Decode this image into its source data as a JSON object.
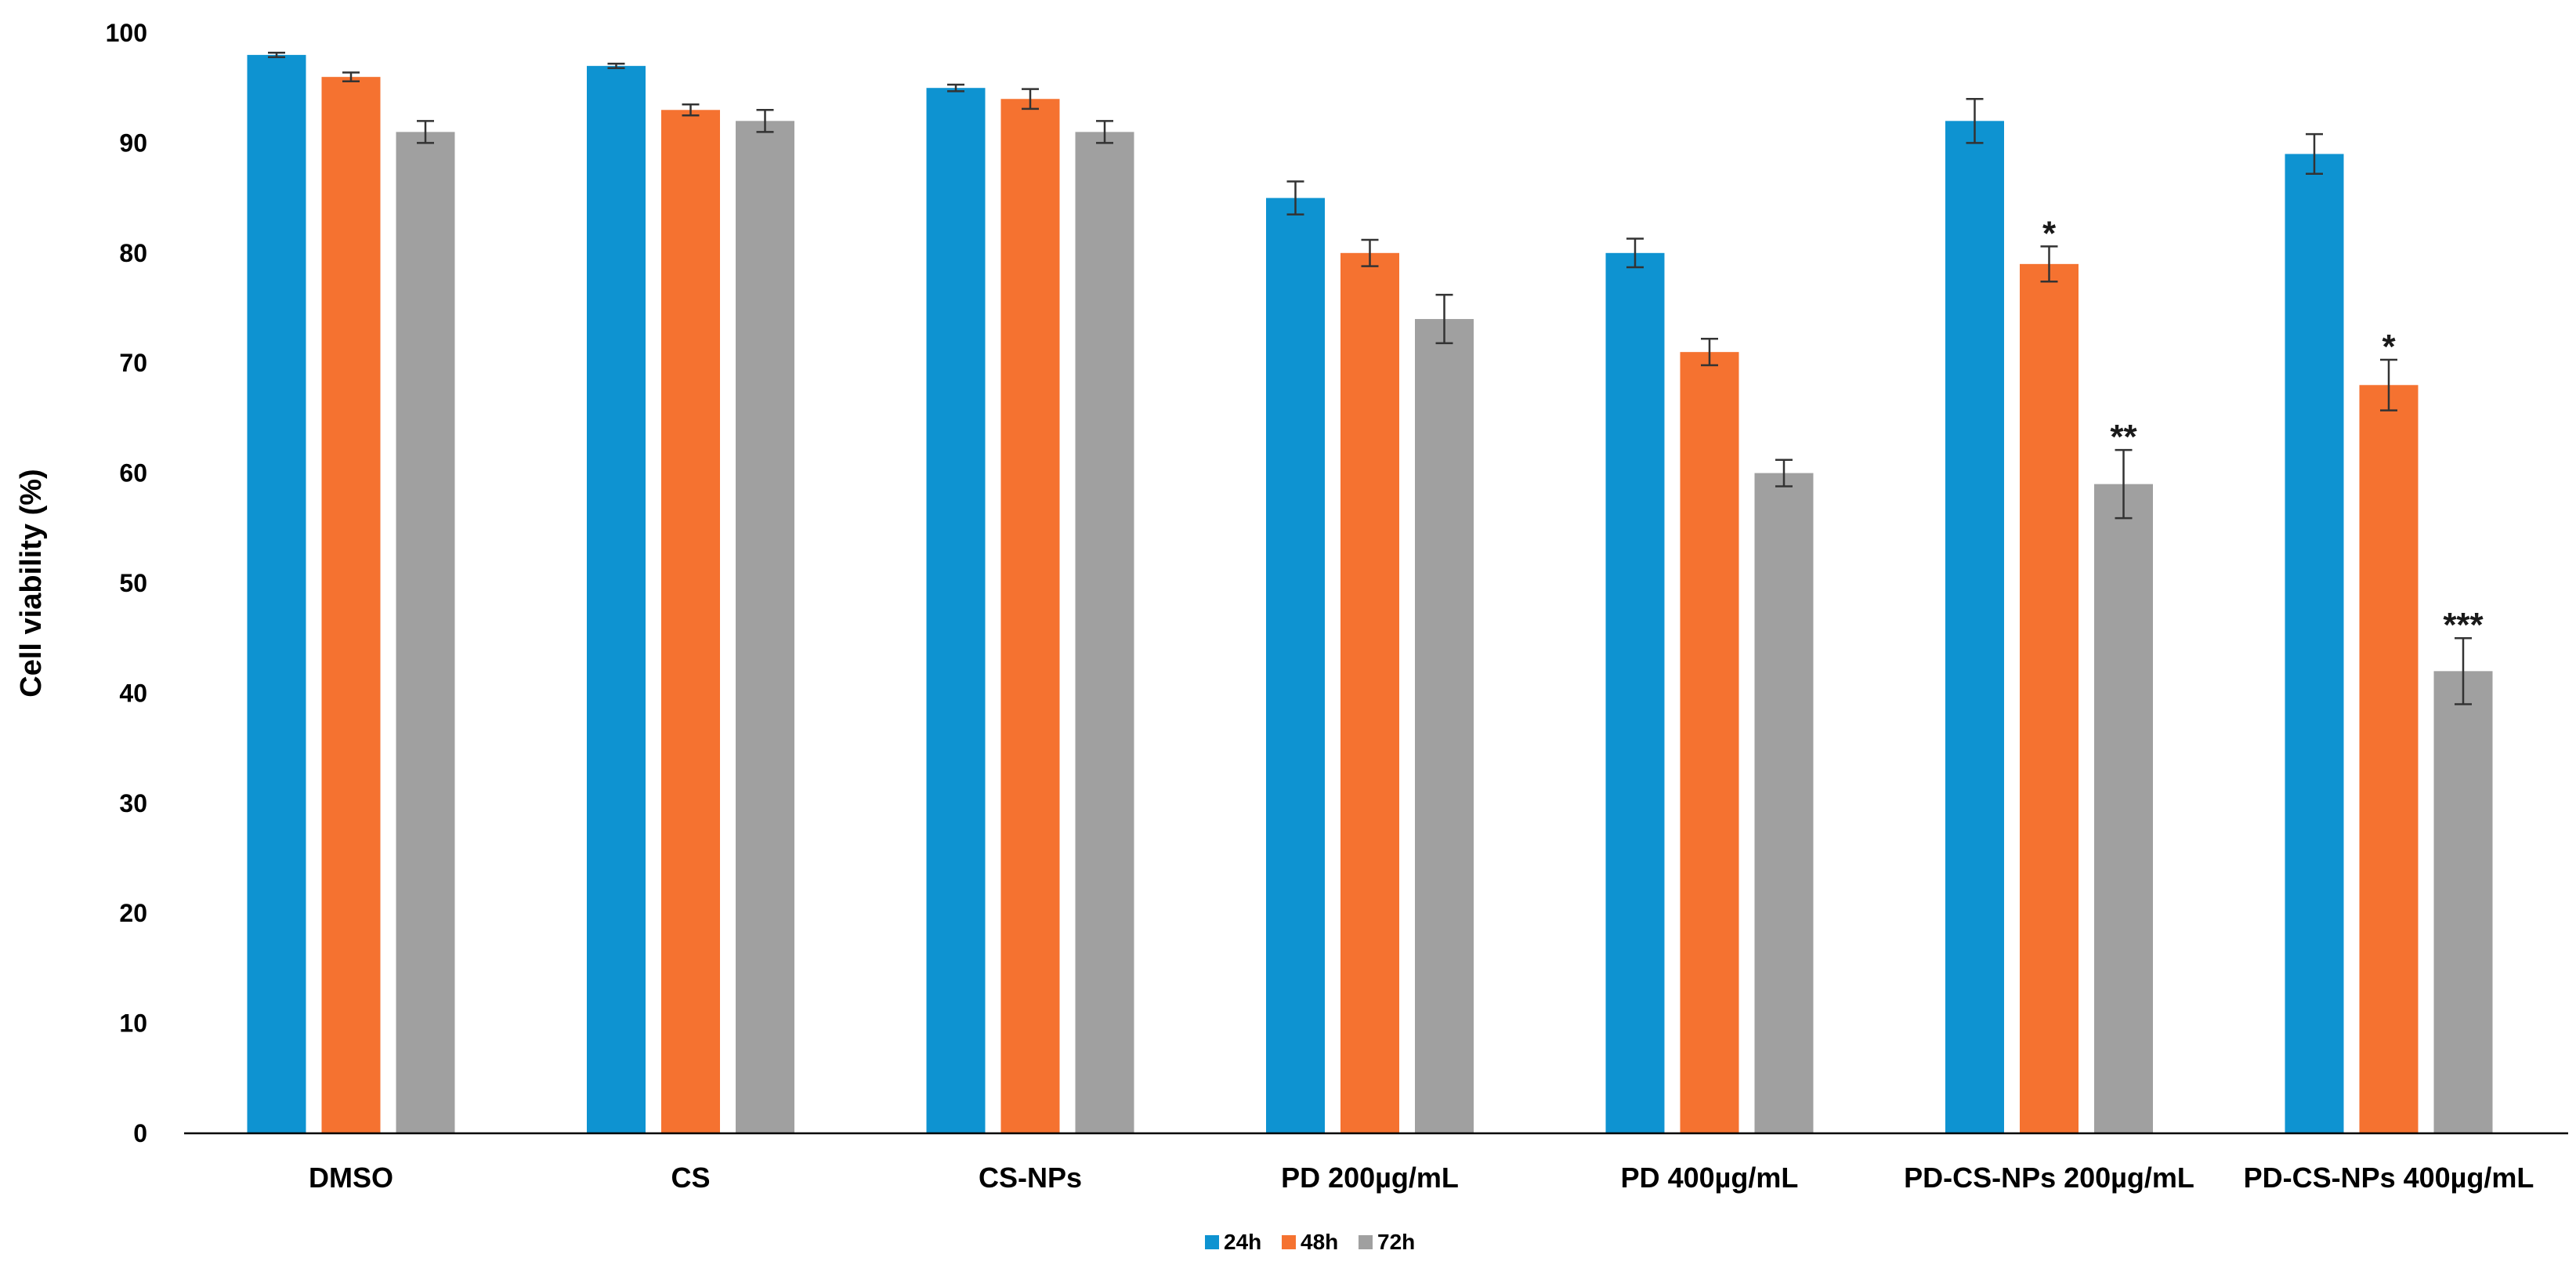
{
  "chart_data": {
    "type": "bar",
    "ylabel": "Cell viability (%)",
    "xlabel": "",
    "ylim": [
      0,
      100
    ],
    "yticks": [
      0,
      10,
      20,
      30,
      40,
      50,
      60,
      70,
      80,
      90,
      100
    ],
    "grid": false,
    "legend_position": "bottom-center",
    "categories": [
      "DMSO",
      "CS",
      "CS-NPs",
      "PD 200µg/mL",
      "PD 400µg/mL",
      "PD-CS-NPs 200µg/mL",
      "PD-CS-NPs 400µg/mL"
    ],
    "series": [
      {
        "name": "24h",
        "color": "#0e93d1",
        "values": [
          98,
          97,
          95,
          85,
          80,
          92,
          89
        ],
        "errors": [
          0.2,
          0.2,
          0.3,
          1.5,
          1.3,
          2.0,
          1.8
        ],
        "annotations": [
          "",
          "",
          "",
          "",
          "",
          "",
          ""
        ]
      },
      {
        "name": "48h",
        "color": "#f57230",
        "values": [
          96,
          93,
          94,
          80,
          71,
          79,
          68
        ],
        "errors": [
          0.4,
          0.5,
          0.9,
          1.2,
          1.2,
          1.6,
          2.3
        ],
        "annotations": [
          "",
          "",
          "",
          "",
          "",
          "*",
          "*"
        ]
      },
      {
        "name": "72h",
        "color": "#a0a0a0",
        "values": [
          91,
          92,
          91,
          74,
          60,
          59,
          42
        ],
        "errors": [
          1.0,
          1.0,
          1.0,
          2.2,
          1.2,
          3.1,
          3.0
        ],
        "annotations": [
          "",
          "",
          "",
          "",
          "",
          "**",
          "***"
        ]
      }
    ]
  }
}
